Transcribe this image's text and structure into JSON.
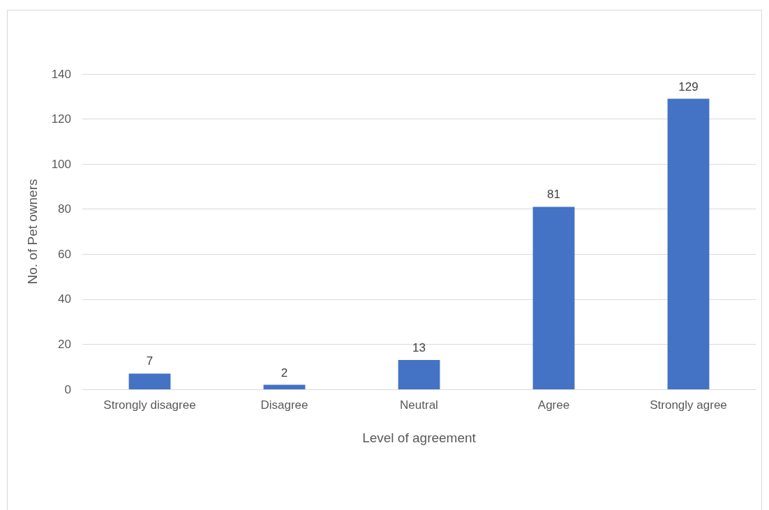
{
  "chart_data": {
    "type": "bar",
    "categories": [
      "Strongly disagree",
      "Disagree",
      "Neutral",
      "Agree",
      "Strongly agree"
    ],
    "values": [
      7,
      2,
      13,
      81,
      129
    ],
    "color": "#4472c4",
    "xlabel": "Level of agreement",
    "ylabel": "No. of Pet owners",
    "ylim": [
      0,
      140
    ],
    "yticks": [
      0,
      20,
      40,
      60,
      80,
      100,
      120,
      140
    ],
    "grid": "y",
    "data_labels": true
  }
}
